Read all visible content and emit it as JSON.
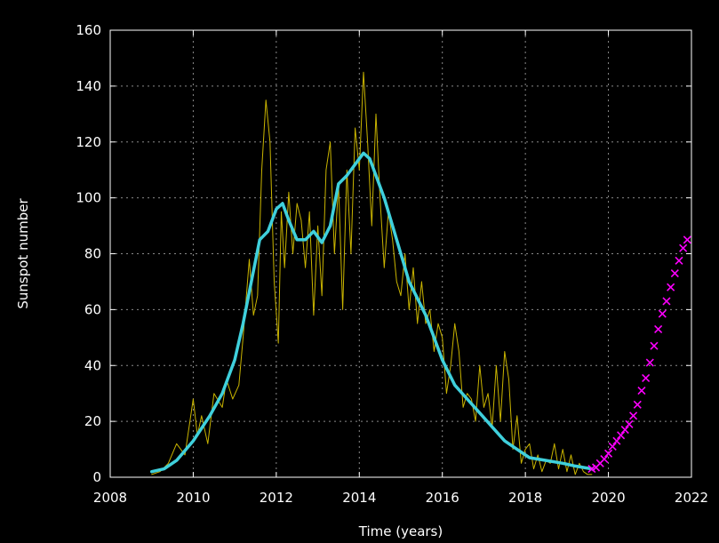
{
  "chart_data": {
    "type": "line",
    "title": "",
    "xlabel": "Time (years)",
    "ylabel": "Sunspot number",
    "xlim": [
      2008,
      2022
    ],
    "ylim": [
      0,
      160
    ],
    "x_ticks": [
      2008,
      2010,
      2012,
      2014,
      2016,
      2018,
      2020,
      2022
    ],
    "y_ticks": [
      0,
      20,
      40,
      60,
      80,
      100,
      120,
      140,
      160
    ],
    "grid": true,
    "legend": "none",
    "colors": {
      "background": "#000000",
      "axes": "#ffffff",
      "grid": "#8a8a8a",
      "monthly": "#c9b400",
      "smoothed": "#3fd0dc",
      "predicted": "#ff00ff"
    },
    "series": [
      {
        "style": "thin-line",
        "color": "#c9b400",
        "x": [
          2009.0,
          2009.2,
          2009.4,
          2009.6,
          2009.8,
          2010.0,
          2010.1,
          2010.2,
          2010.35,
          2010.5,
          2010.7,
          2010.8,
          2010.95,
          2011.1,
          2011.2,
          2011.35,
          2011.45,
          2011.55,
          2011.65,
          2011.75,
          2011.85,
          2011.95,
          2012.05,
          2012.12,
          2012.2,
          2012.3,
          2012.4,
          2012.5,
          2012.6,
          2012.7,
          2012.8,
          2012.9,
          2013.0,
          2013.1,
          2013.2,
          2013.3,
          2013.4,
          2013.5,
          2013.6,
          2013.7,
          2013.8,
          2013.9,
          2014.0,
          2014.1,
          2014.2,
          2014.3,
          2014.4,
          2014.5,
          2014.6,
          2014.7,
          2014.8,
          2014.9,
          2015.0,
          2015.1,
          2015.2,
          2015.3,
          2015.4,
          2015.5,
          2015.6,
          2015.7,
          2015.8,
          2015.9,
          2016.0,
          2016.1,
          2016.2,
          2016.3,
          2016.4,
          2016.5,
          2016.6,
          2016.7,
          2016.8,
          2016.9,
          2017.0,
          2017.1,
          2017.2,
          2017.3,
          2017.4,
          2017.5,
          2017.6,
          2017.7,
          2017.8,
          2017.9,
          2018.0,
          2018.1,
          2018.2,
          2018.3,
          2018.4,
          2018.5,
          2018.6,
          2018.7,
          2018.8,
          2018.9,
          2019.0,
          2019.1,
          2019.2,
          2019.3,
          2019.4,
          2019.5,
          2019.6
        ],
        "y": [
          1,
          2,
          5,
          12,
          8,
          28,
          15,
          22,
          12,
          30,
          25,
          35,
          28,
          33,
          50,
          78,
          58,
          65,
          110,
          135,
          120,
          70,
          48,
          95,
          75,
          102,
          80,
          98,
          92,
          75,
          95,
          58,
          90,
          65,
          110,
          120,
          80,
          105,
          60,
          110,
          80,
          125,
          110,
          145,
          120,
          90,
          130,
          100,
          75,
          95,
          85,
          70,
          65,
          80,
          60,
          75,
          55,
          70,
          55,
          60,
          45,
          55,
          50,
          30,
          40,
          55,
          45,
          25,
          30,
          28,
          20,
          40,
          25,
          30,
          18,
          40,
          20,
          45,
          35,
          10,
          22,
          5,
          10,
          12,
          3,
          8,
          2,
          6,
          5,
          12,
          3,
          10,
          2,
          8,
          1,
          5,
          2,
          1,
          1
        ]
      },
      {
        "style": "thick-line",
        "color": "#3fd0dc",
        "x": [
          2009.0,
          2009.3,
          2009.6,
          2010.0,
          2010.4,
          2010.7,
          2011.0,
          2011.2,
          2011.4,
          2011.6,
          2011.8,
          2012.0,
          2012.15,
          2012.3,
          2012.5,
          2012.7,
          2012.9,
          2013.1,
          2013.3,
          2013.5,
          2013.7,
          2013.9,
          2014.1,
          2014.25,
          2014.4,
          2014.6,
          2014.8,
          2015.0,
          2015.2,
          2015.4,
          2015.6,
          2015.8,
          2016.0,
          2016.3,
          2016.6,
          2016.9,
          2017.2,
          2017.5,
          2017.8,
          2018.1,
          2018.5,
          2018.9,
          2019.2,
          2019.6
        ],
        "y": [
          2,
          3,
          6,
          13,
          22,
          30,
          42,
          55,
          70,
          85,
          88,
          96,
          98,
          92,
          85,
          85,
          88,
          84,
          90,
          105,
          108,
          112,
          116,
          114,
          108,
          100,
          90,
          80,
          70,
          64,
          58,
          50,
          42,
          33,
          28,
          23,
          18,
          13,
          10,
          7,
          6,
          5,
          4,
          3
        ]
      },
      {
        "style": "markers",
        "marker": "x",
        "color": "#ff00ff",
        "x": [
          2019.6,
          2019.7,
          2019.8,
          2019.9,
          2020.0,
          2020.1,
          2020.2,
          2020.3,
          2020.4,
          2020.5,
          2020.6,
          2020.7,
          2020.8,
          2020.9,
          2021.0,
          2021.1,
          2021.2,
          2021.3,
          2021.4,
          2021.5,
          2021.6,
          2021.7,
          2021.8,
          2021.9
        ],
        "y": [
          3,
          3.5,
          5,
          6.5,
          8.5,
          11,
          13,
          15,
          17,
          19,
          22,
          26,
          31,
          35.5,
          41,
          47,
          53,
          58.5,
          63,
          68,
          73,
          77.5,
          82,
          85
        ]
      }
    ]
  }
}
